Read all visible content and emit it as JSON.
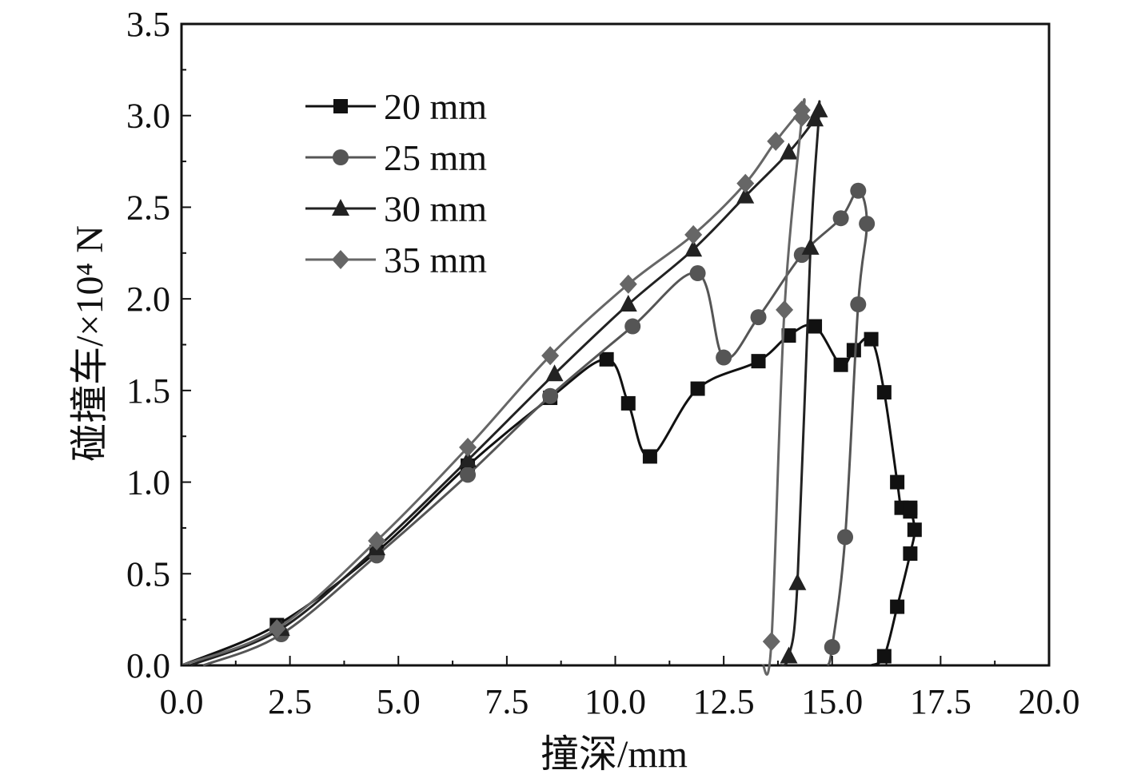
{
  "chart_data": {
    "type": "line",
    "title": "",
    "xlabel": "撞深/mm",
    "ylabel": "碰撞车/×10⁴ N",
    "xlim": [
      0,
      20
    ],
    "ylim": [
      0,
      3.5
    ],
    "x_ticks": [
      "0.0",
      "2.5",
      "5.0",
      "7.5",
      "10.0",
      "12.5",
      "15.0",
      "17.5",
      "20.0"
    ],
    "y_ticks": [
      "0.0",
      "0.5",
      "1.0",
      "1.5",
      "2.0",
      "2.5",
      "3.0",
      "3.5"
    ],
    "grid": false,
    "legend_position": "top-left",
    "series": [
      {
        "name": "20 mm",
        "marker": "square",
        "color": "#111111",
        "x": [
          0.0,
          2.2,
          4.5,
          6.6,
          8.5,
          9.8,
          10.3,
          10.8,
          11.9,
          13.3,
          14.0,
          14.6,
          15.2,
          15.5,
          15.9,
          16.2,
          16.5,
          16.6,
          16.8,
          16.8,
          16.9,
          16.8,
          16.5,
          16.2,
          15.9
        ],
        "y": [
          0.0,
          0.22,
          0.62,
          1.09,
          1.46,
          1.67,
          1.43,
          1.14,
          1.51,
          1.66,
          1.8,
          1.85,
          1.64,
          1.72,
          1.78,
          1.49,
          1.0,
          0.86,
          0.84,
          0.86,
          0.74,
          0.61,
          0.32,
          0.05,
          0.0
        ]
      },
      {
        "name": "25 mm",
        "marker": "circle",
        "color": "#555555",
        "x": [
          0.5,
          2.3,
          4.5,
          6.6,
          8.5,
          10.4,
          11.9,
          12.5,
          13.3,
          14.3,
          15.2,
          15.6,
          15.8,
          15.6,
          15.3,
          15.0,
          14.9
        ],
        "y": [
          0.0,
          0.17,
          0.6,
          1.04,
          1.47,
          1.85,
          2.14,
          1.68,
          1.9,
          2.24,
          2.44,
          2.59,
          2.41,
          1.97,
          0.7,
          0.1,
          0.0
        ]
      },
      {
        "name": "30 mm",
        "marker": "triangle",
        "color": "#222222",
        "x": [
          0.2,
          2.3,
          4.5,
          6.6,
          8.6,
          10.3,
          11.8,
          13.0,
          14.0,
          14.6,
          14.7,
          14.5,
          14.2,
          14.0,
          13.8
        ],
        "y": [
          0.0,
          0.2,
          0.64,
          1.12,
          1.59,
          1.97,
          2.27,
          2.56,
          2.8,
          2.98,
          3.03,
          2.28,
          0.45,
          0.05,
          0.0
        ]
      },
      {
        "name": "35 mm",
        "marker": "diamond",
        "color": "#666666",
        "x": [
          0.0,
          2.2,
          4.5,
          6.6,
          8.5,
          10.3,
          11.8,
          13.0,
          13.7,
          14.3,
          14.3,
          13.9,
          13.6,
          13.4
        ],
        "y": [
          0.0,
          0.2,
          0.68,
          1.19,
          1.69,
          2.08,
          2.35,
          2.63,
          2.86,
          3.03,
          2.99,
          1.94,
          0.13,
          0.0
        ]
      }
    ]
  }
}
